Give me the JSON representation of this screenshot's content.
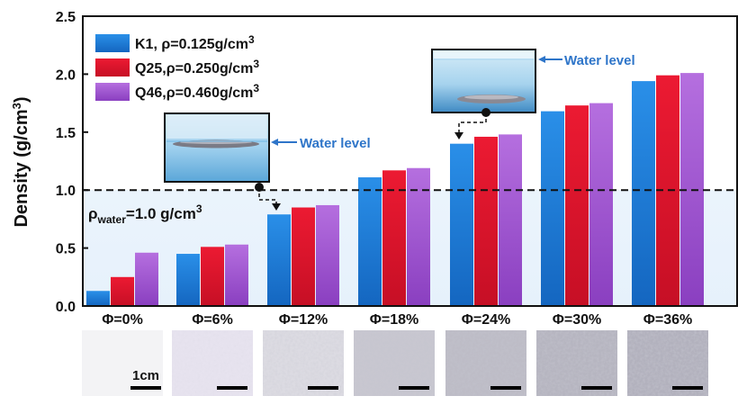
{
  "chart_data": {
    "type": "bar",
    "title": "",
    "xlabel": "",
    "ylabel": "Density (g/cm3)",
    "ylim": [
      0,
      2.5
    ],
    "yticks": [
      "0.0",
      "0.5",
      "1.0",
      "1.5",
      "2.0",
      "2.5"
    ],
    "categories": [
      "Φ=0%",
      "Φ=6%",
      "Φ=12%",
      "Φ=18%",
      "Φ=24%",
      "Φ=30%",
      "Φ=36%"
    ],
    "series": [
      {
        "name": "K1,  ρ=0.125g/cm3",
        "color": "#1e7fd6",
        "values": [
          0.13,
          0.45,
          0.79,
          1.11,
          1.4,
          1.68,
          1.94
        ]
      },
      {
        "name": "Q25,ρ=0.250g/cm3",
        "color": "#e0142d",
        "values": [
          0.25,
          0.51,
          0.85,
          1.17,
          1.46,
          1.73,
          1.99
        ]
      },
      {
        "name": "Q46,ρ=0.460g/cm3",
        "color": "#a25bd0",
        "values": [
          0.46,
          0.53,
          0.87,
          1.19,
          1.48,
          1.75,
          2.01
        ]
      }
    ],
    "reference_line": {
      "value": 1.0,
      "style": "dashed",
      "label": "ρwater=1.0 g/cm3"
    },
    "annotations": [
      "Water level",
      "Water level"
    ],
    "scale_bar_label": "1cm",
    "legend_position": "top-left",
    "grid": false
  }
}
